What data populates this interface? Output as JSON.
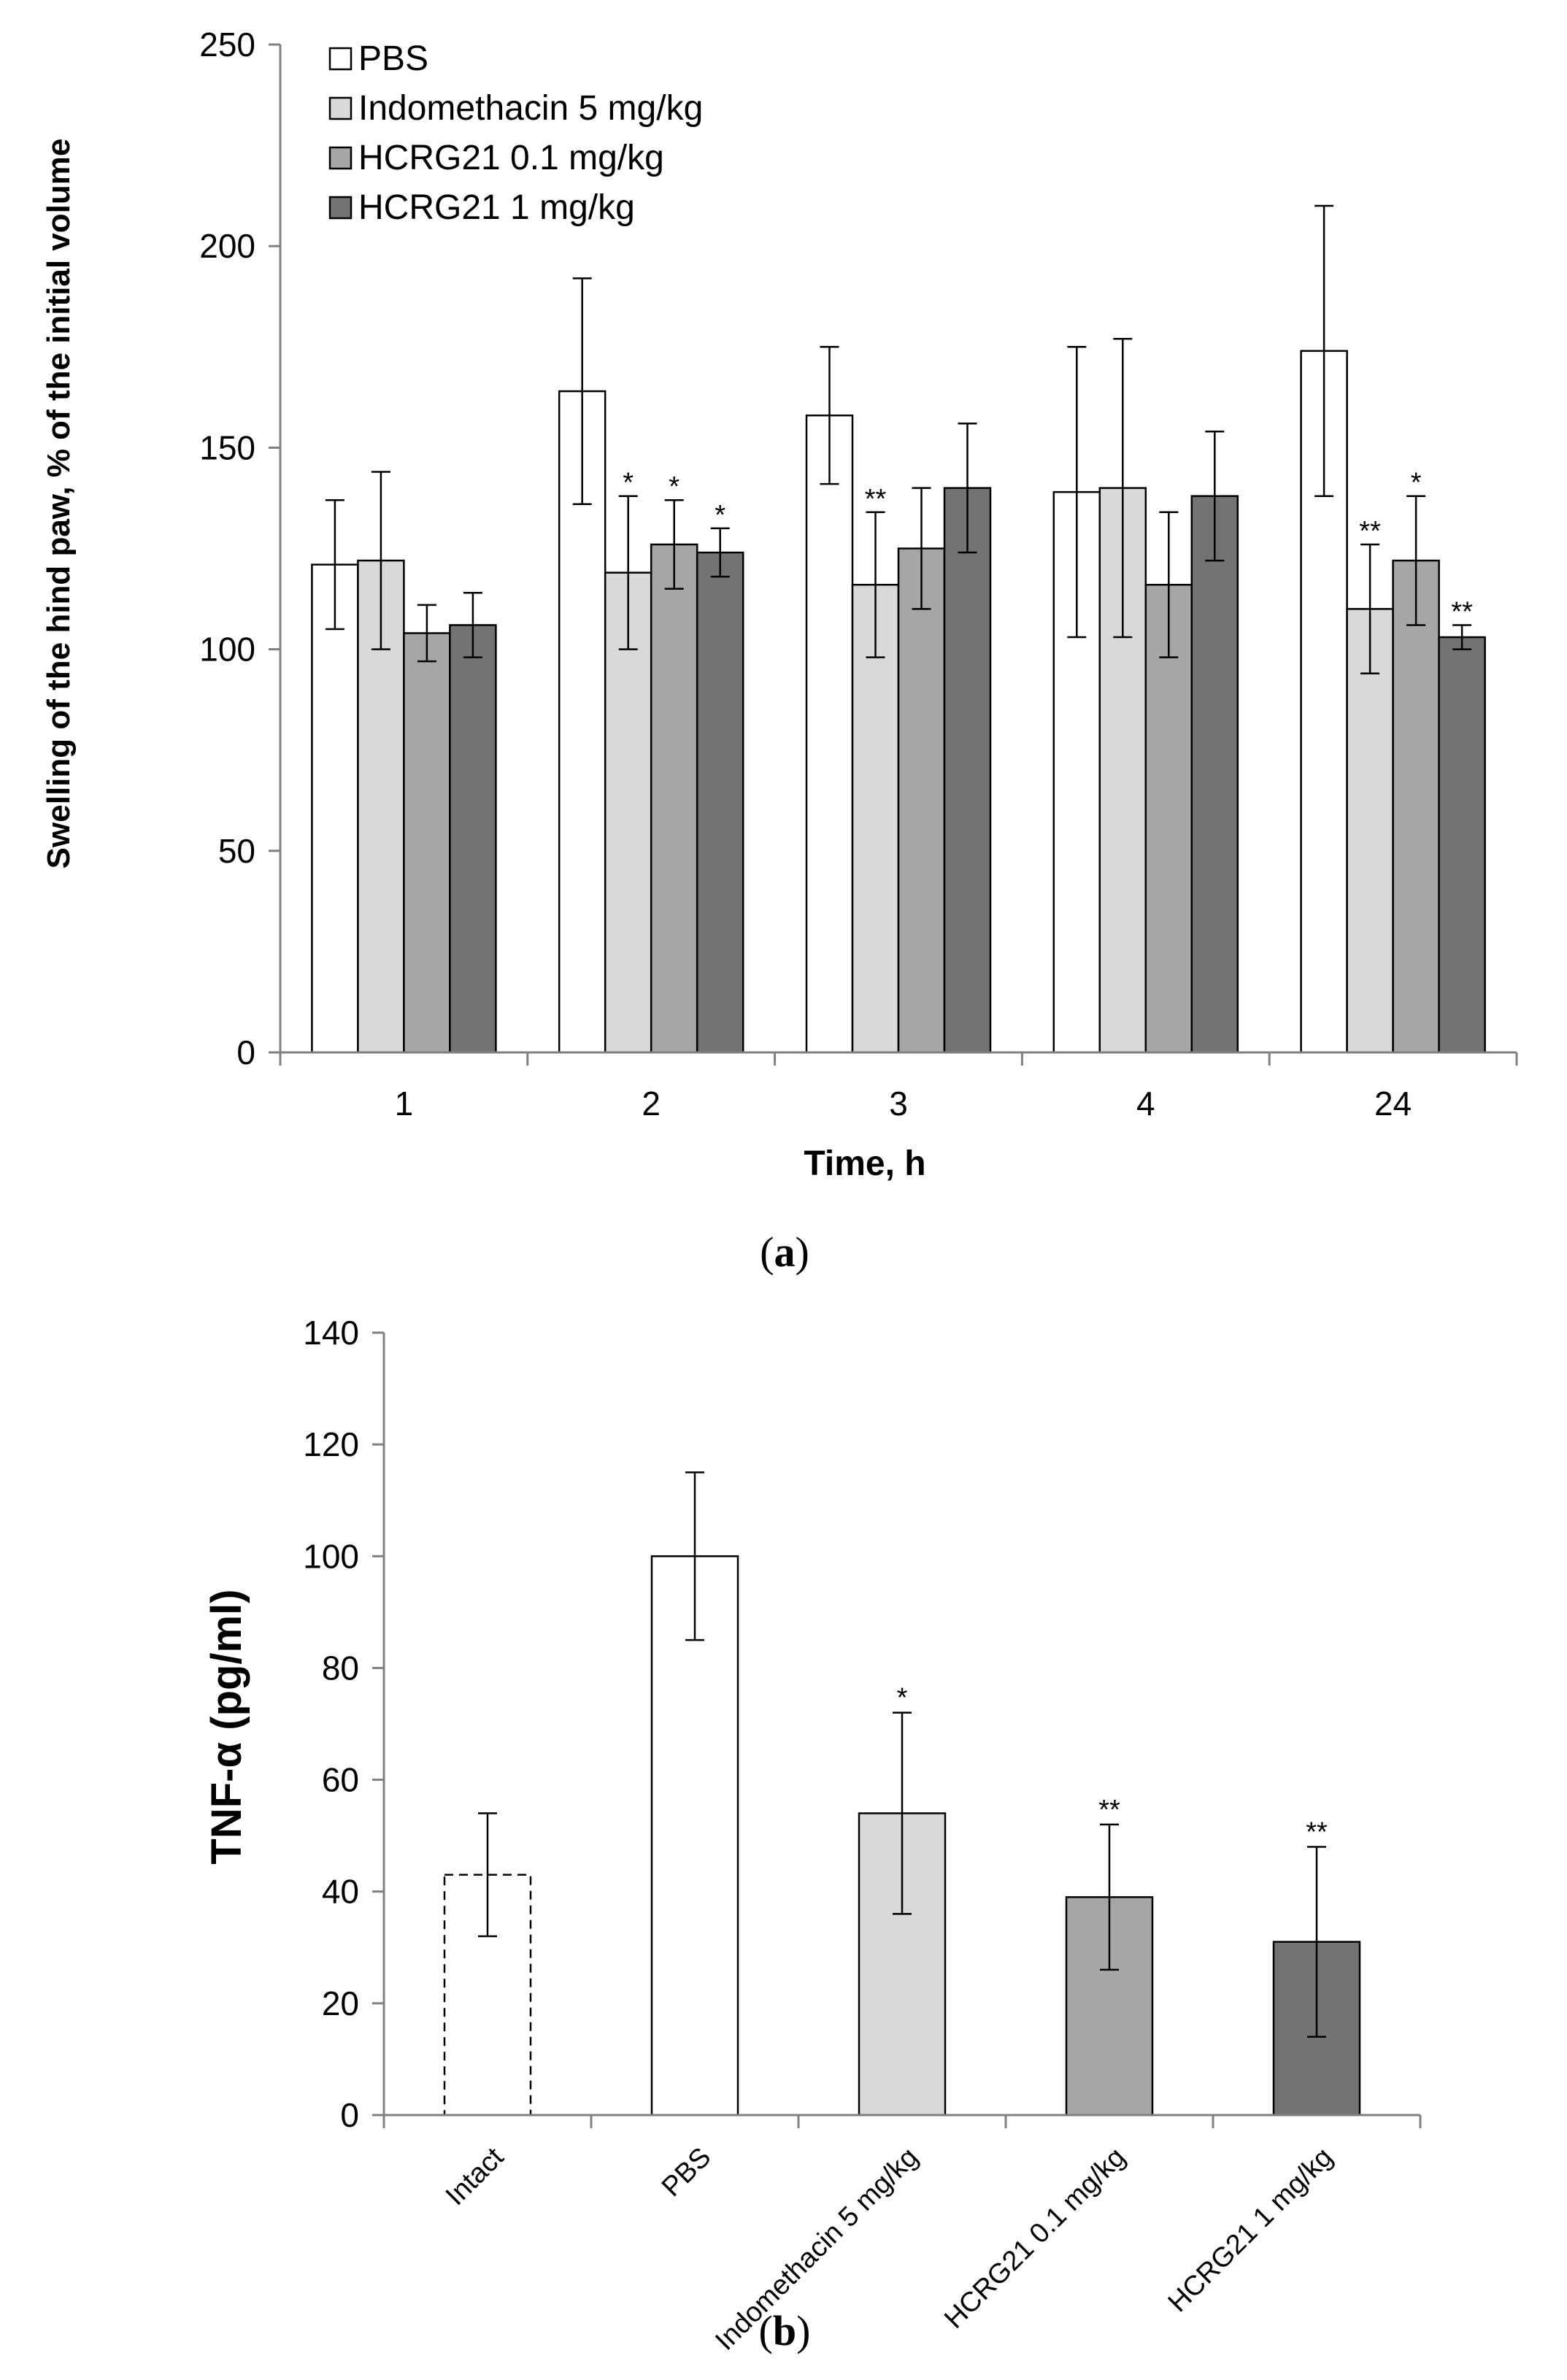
{
  "chart_data": [
    {
      "type": "bar",
      "panel_label": "a",
      "xlabel": "Time, h",
      "ylabel": "Swelling of the hind paw, % of the initial volume",
      "ylim": [
        0,
        250
      ],
      "yticks": [
        0,
        50,
        100,
        150,
        200,
        250
      ],
      "categories": [
        "1",
        "2",
        "3",
        "4",
        "24"
      ],
      "legend_position": "top-left",
      "series": [
        {
          "name": "PBS",
          "color": "#ffffff",
          "values": [
            121,
            164,
            158,
            139,
            174
          ],
          "errors": [
            16,
            28,
            17,
            36,
            36
          ],
          "significance": [
            "",
            "",
            "",
            "",
            ""
          ]
        },
        {
          "name": "Indomethacin 5 mg/kg",
          "color": "#d9d9d9",
          "values": [
            122,
            119,
            116,
            140,
            110
          ],
          "errors": [
            22,
            19,
            18,
            37,
            16
          ],
          "significance": [
            "",
            "*",
            "**",
            "",
            "**"
          ]
        },
        {
          "name": "HCRG21 0.1 mg/kg",
          "color": "#a6a6a6",
          "values": [
            104,
            126,
            125,
            116,
            122
          ],
          "errors": [
            7,
            11,
            15,
            18,
            16
          ],
          "significance": [
            "",
            "*",
            "",
            "",
            "*"
          ]
        },
        {
          "name": "HCRG21 1 mg/kg",
          "color": "#737373",
          "values": [
            106,
            124,
            140,
            138,
            103
          ],
          "errors": [
            8,
            6,
            16,
            16,
            3
          ],
          "significance": [
            "",
            "*",
            "",
            "",
            "**"
          ]
        }
      ]
    },
    {
      "type": "bar",
      "panel_label": "b",
      "xlabel": "",
      "ylabel": "TNF-α (pg/ml)",
      "ylim": [
        0,
        140
      ],
      "yticks": [
        0,
        20,
        40,
        60,
        80,
        100,
        120,
        140
      ],
      "categories": [
        "Intact",
        "PBS",
        "Indomethacin 5 mg/kg",
        "HCRG21 0.1 mg/kg",
        "HCRG21 1 mg/kg"
      ],
      "values": [
        43,
        100,
        54,
        39,
        31
      ],
      "errors": [
        11,
        15,
        18,
        13,
        17
      ],
      "colors": [
        "#ffffff",
        "#ffffff",
        "#d9d9d9",
        "#a6a6a6",
        "#737373"
      ],
      "dashed": [
        true,
        false,
        false,
        false,
        false
      ],
      "significance": [
        "",
        "",
        "*",
        "**",
        "**"
      ]
    }
  ]
}
